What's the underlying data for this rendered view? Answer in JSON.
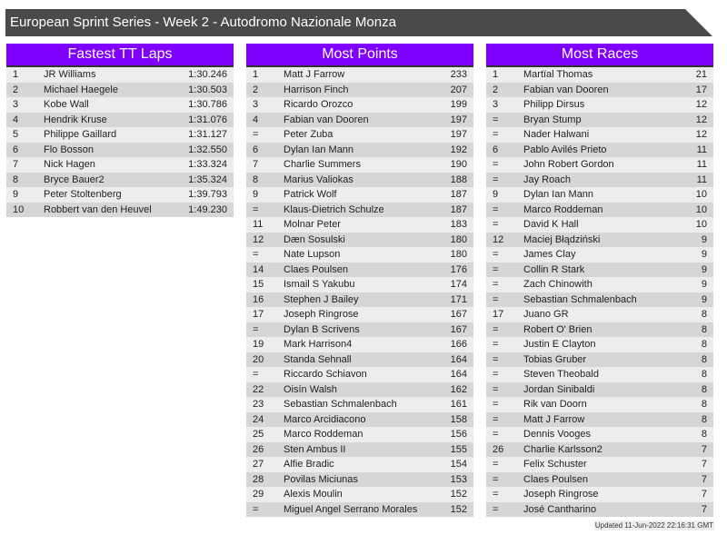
{
  "title": "European Sprint Series - Week 2 - Autodromo Nazionale Monza",
  "panels": [
    {
      "heading": "Fastest TT Laps",
      "rows": [
        [
          "1",
          "JR Williams",
          "1:30.246"
        ],
        [
          "2",
          "Michael Haegele",
          "1:30.503"
        ],
        [
          "3",
          "Kobe Wall",
          "1:30.786"
        ],
        [
          "4",
          "Hendrik Kruse",
          "1:31.076"
        ],
        [
          "5",
          "Philippe Gaillard",
          "1:31.127"
        ],
        [
          "6",
          "Flo Bosson",
          "1:32.550"
        ],
        [
          "7",
          "Nick Hagen",
          "1:33.324"
        ],
        [
          "8",
          "Bryce Bauer2",
          "1:35.324"
        ],
        [
          "9",
          "Peter Stoltenberg",
          "1:39.793"
        ],
        [
          "10",
          "Robbert van den Heuvel",
          "1:49.230"
        ]
      ]
    },
    {
      "heading": "Most Points",
      "rows": [
        [
          "1",
          "Matt J Farrow",
          "233"
        ],
        [
          "2",
          "Harrison Finch",
          "207"
        ],
        [
          "3",
          "Ricardo Orozco",
          "199"
        ],
        [
          "4",
          "Fabian van Dooren",
          "197"
        ],
        [
          "=",
          "Peter Zuba",
          "197"
        ],
        [
          "6",
          "Dylan Ian Mann",
          "192"
        ],
        [
          "7",
          "Charlie Summers",
          "190"
        ],
        [
          "8",
          "Marius Valiokas",
          "188"
        ],
        [
          "9",
          "Patrick Wolf",
          "187"
        ],
        [
          "=",
          "Klaus-Dietrich Schulze",
          "187"
        ],
        [
          "11",
          "Molnar Peter",
          "183"
        ],
        [
          "12",
          "Dæn Sosulski",
          "180"
        ],
        [
          "=",
          "Nate Lupson",
          "180"
        ],
        [
          "14",
          "Claes Poulsen",
          "176"
        ],
        [
          "15",
          "Ismail S Yakubu",
          "174"
        ],
        [
          "16",
          "Stephen J Bailey",
          "171"
        ],
        [
          "17",
          "Joseph Ringrose",
          "167"
        ],
        [
          "=",
          "Dylan B Scrivens",
          "167"
        ],
        [
          "19",
          "Mark Harrison4",
          "166"
        ],
        [
          "20",
          "Standa Sehnall",
          "164"
        ],
        [
          "=",
          "Riccardo Schiavon",
          "164"
        ],
        [
          "22",
          "Oisín Walsh",
          "162"
        ],
        [
          "23",
          "Sebastian Schmalenbach",
          "161"
        ],
        [
          "24",
          "Marco Arcidiacono",
          "158"
        ],
        [
          "25",
          "Marco Roddeman",
          "156"
        ],
        [
          "26",
          "Sten Ambus II",
          "155"
        ],
        [
          "27",
          "Alfie Bradic",
          "154"
        ],
        [
          "28",
          "Povilas Miciunas",
          "153"
        ],
        [
          "29",
          "Alexis Moulin",
          "152"
        ],
        [
          "=",
          "Miguel Angel Serrano Morales",
          "152"
        ]
      ]
    },
    {
      "heading": "Most Races",
      "rows": [
        [
          "1",
          "Martïal Thomas",
          "21"
        ],
        [
          "2",
          "Fabian van Dooren",
          "17"
        ],
        [
          "3",
          "Philipp Dirsus",
          "12"
        ],
        [
          "=",
          "Bryan Stump",
          "12"
        ],
        [
          "=",
          "Nader Halwani",
          "12"
        ],
        [
          "6",
          "Pablo Avilés Prieto",
          "11"
        ],
        [
          "=",
          "John Robert Gordon",
          "11"
        ],
        [
          "=",
          "Jay Roach",
          "11"
        ],
        [
          "9",
          "Dylan Ian Mann",
          "10"
        ],
        [
          "=",
          "Marco Roddeman",
          "10"
        ],
        [
          "=",
          "David K Hall",
          "10"
        ],
        [
          "12",
          "Maciej Błądziński",
          "9"
        ],
        [
          "=",
          "James Clay",
          "9"
        ],
        [
          "=",
          "Collin R Stark",
          "9"
        ],
        [
          "=",
          "Zach Chinowith",
          "9"
        ],
        [
          "=",
          "Sebastian Schmalenbach",
          "9"
        ],
        [
          "17",
          "Juano GR",
          "8"
        ],
        [
          "=",
          "Robert O' Brien",
          "8"
        ],
        [
          "=",
          "Justin E Clayton",
          "8"
        ],
        [
          "=",
          "Tobias Gruber",
          "8"
        ],
        [
          "=",
          "Steven Theobald",
          "8"
        ],
        [
          "=",
          "Jordan Sinibaldi",
          "8"
        ],
        [
          "=",
          "Rik van Doorn",
          "8"
        ],
        [
          "=",
          "Matt J Farrow",
          "8"
        ],
        [
          "=",
          "Dennis Vooges",
          "8"
        ],
        [
          "26",
          "Charlie Karlsson2",
          "7"
        ],
        [
          "=",
          "Felix Schuster",
          "7"
        ],
        [
          "=",
          "Claes Poulsen",
          "7"
        ],
        [
          "=",
          "Joseph Ringrose",
          "7"
        ],
        [
          "=",
          "José Cantharino",
          "7"
        ]
      ]
    }
  ],
  "updated": "Updated 11-Jun-2022 22:16:31 GMT",
  "colors": {
    "header": "#8000ff",
    "titlebar": "#4a4a4a"
  }
}
